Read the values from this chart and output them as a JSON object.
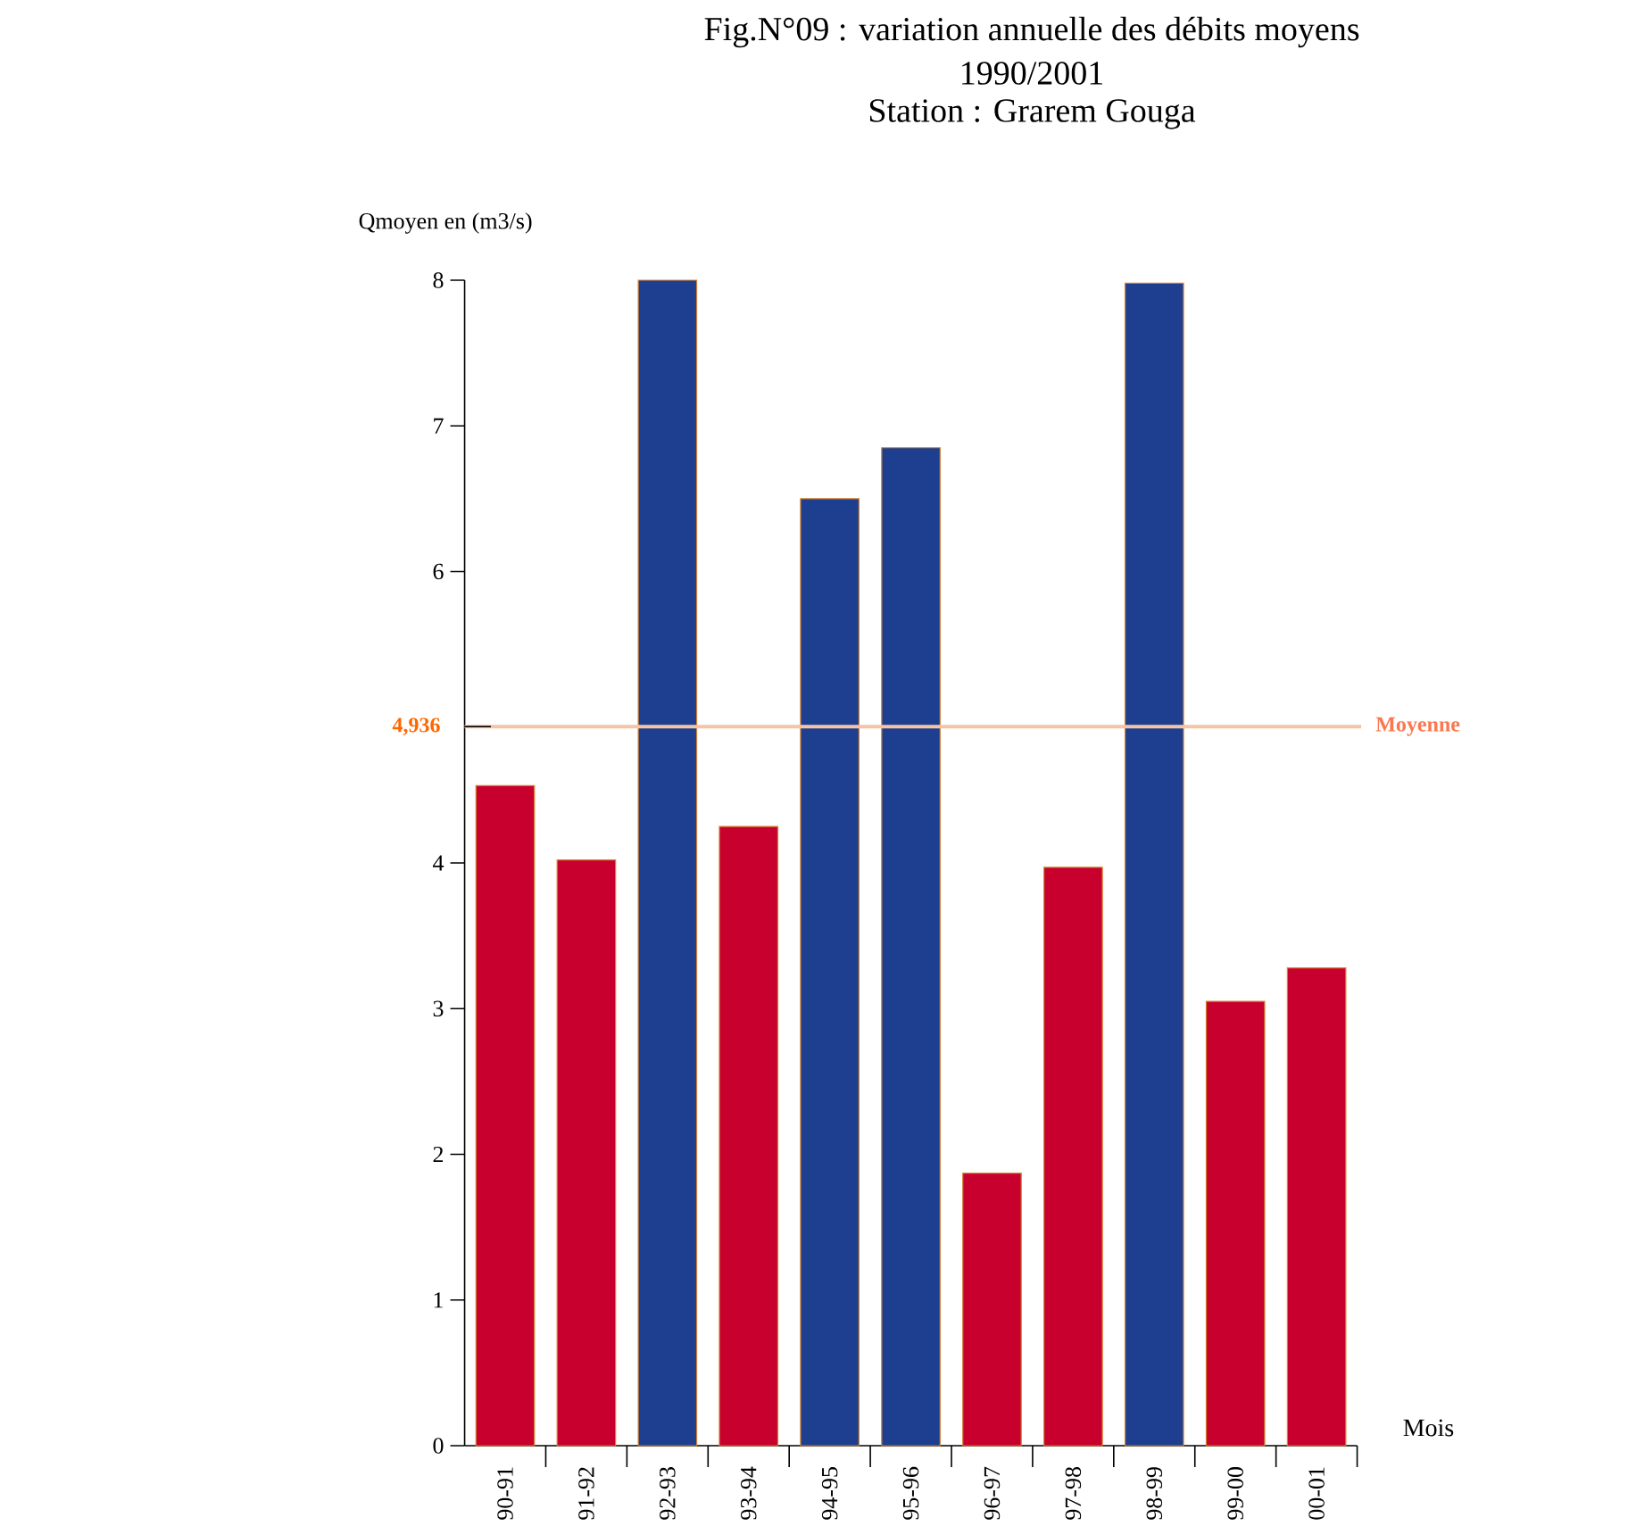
{
  "chart_data": {
    "type": "bar",
    "title": "Fig.N°09 :  variation annuelle des débits moyens",
    "subtitle": "1990/2001",
    "annotations": [
      "Station : Grarem Gouga",
      "4,936"
    ],
    "xlabel": "Mois",
    "ylabel": "Qmoyen en (m3/s)",
    "categories": [
      "90-91",
      "91-92",
      "92-93",
      "93-94",
      "94-95",
      "95-96",
      "96-97",
      "97-98",
      "98-99",
      "99-00",
      "00-01"
    ],
    "values": [
      4.53,
      4.02,
      8.0,
      4.25,
      6.5,
      6.85,
      1.87,
      3.97,
      7.98,
      3.05,
      3.28
    ],
    "colors": [
      "#c8002e",
      "#c8002e",
      "#1e3f8f",
      "#c8002e",
      "#1e3f8f",
      "#1e3f8f",
      "#c8002e",
      "#c8002e",
      "#1e3f8f",
      "#c8002e",
      "#c8002e"
    ],
    "ylim": [
      0,
      8
    ],
    "yticks": [
      0,
      1,
      2,
      3,
      4,
      6,
      7,
      8
    ],
    "ref_lines": [
      {
        "axis": "y",
        "value": 4.936,
        "label": "Moyenne",
        "color": "#f5c4a6"
      }
    ],
    "grid": false
  }
}
